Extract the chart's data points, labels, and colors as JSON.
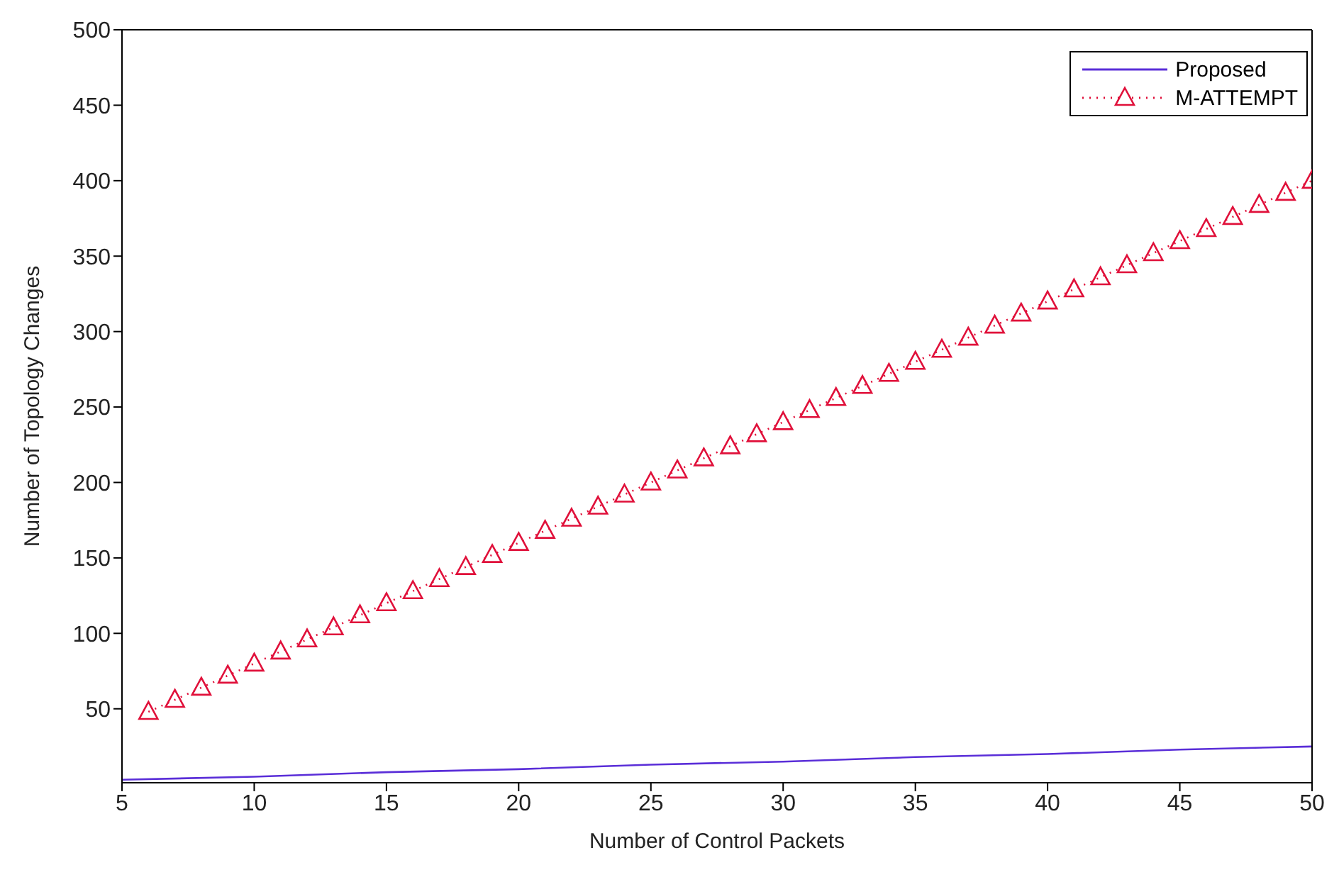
{
  "chart_data": {
    "type": "line",
    "xlabel": "Number of Control Packets",
    "ylabel": "Number of Topology Changes",
    "xlim": [
      5,
      50
    ],
    "xticks": [
      5,
      10,
      15,
      20,
      25,
      30,
      35,
      40,
      45,
      50
    ],
    "ylim": [
      1,
      500
    ],
    "yticks": [
      50,
      100,
      150,
      200,
      250,
      300,
      350,
      400,
      450,
      500
    ],
    "grid": false,
    "legend": "top right",
    "series": [
      {
        "name": "Proposed",
        "color": "#5a2ed8",
        "marker": "none",
        "line_style": "solid",
        "x": [
          5,
          10,
          15,
          20,
          25,
          30,
          35,
          40,
          45,
          50
        ],
        "values": [
          3,
          5,
          8,
          10,
          13,
          15,
          18,
          20,
          23,
          25
        ]
      },
      {
        "name": "M-ATTEMPT",
        "color": "#e0103a",
        "marker": "triangle",
        "line_style": "dotted",
        "x": [
          6,
          7,
          8,
          9,
          10,
          11,
          12,
          13,
          14,
          15,
          16,
          17,
          18,
          19,
          20,
          21,
          22,
          23,
          24,
          25,
          26,
          27,
          28,
          29,
          30,
          31,
          32,
          33,
          34,
          35,
          36,
          37,
          38,
          39,
          40,
          41,
          42,
          43,
          44,
          45,
          46,
          47,
          48,
          49,
          50
        ],
        "values": [
          48,
          56,
          64,
          72,
          80,
          88,
          96,
          104,
          112,
          120,
          128,
          136,
          144,
          152,
          160,
          168,
          176,
          184,
          192,
          200,
          208,
          216,
          224,
          232,
          240,
          248,
          256,
          264,
          272,
          280,
          288,
          296,
          304,
          312,
          320,
          328,
          336,
          344,
          352,
          360,
          368,
          376,
          384,
          392,
          400
        ]
      }
    ]
  }
}
